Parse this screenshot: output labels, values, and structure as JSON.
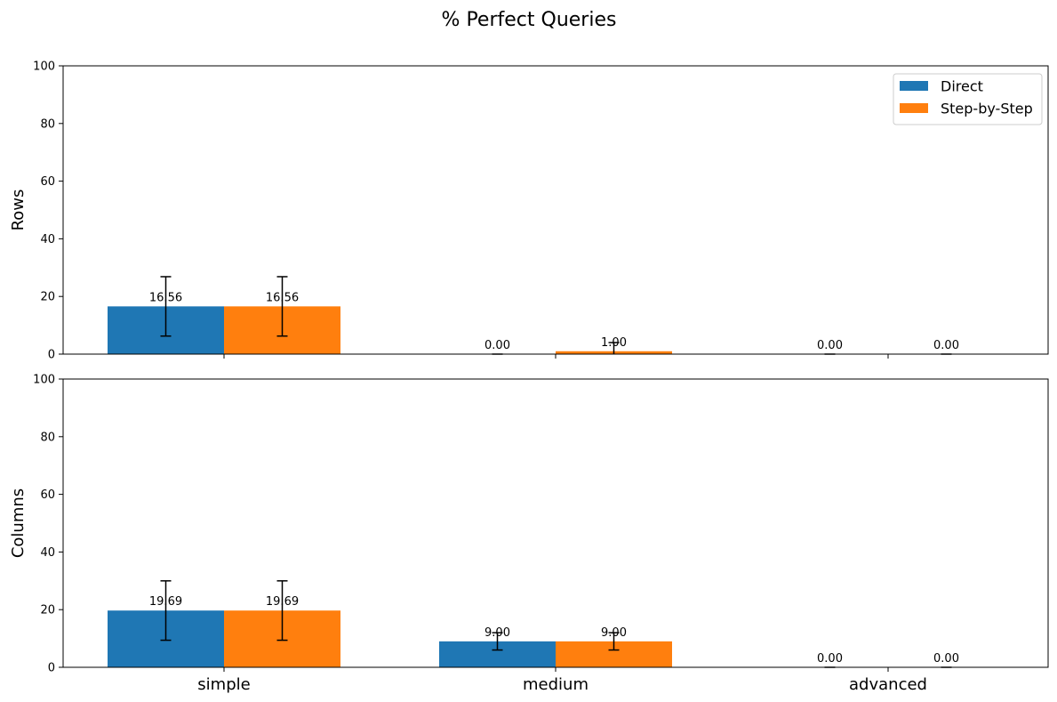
{
  "chart_data": {
    "type": "bar",
    "title": "% Perfect Queries",
    "categories": [
      "simple",
      "medium",
      "advanced"
    ],
    "ylim": [
      0,
      100
    ],
    "yticks": [
      0,
      20,
      40,
      60,
      80,
      100
    ],
    "legend": {
      "location": "top-right",
      "entries": [
        "Direct",
        "Step-by-Step"
      ]
    },
    "colors": {
      "Direct": "#1f77b4",
      "Step-by-Step": "#ff7f0e"
    },
    "panels": [
      {
        "ylabel": "Rows",
        "series": [
          {
            "name": "Direct",
            "values": [
              16.56,
              0.0,
              0.0
            ],
            "errors": [
              10.3,
              0.0,
              0.0
            ],
            "labels": [
              "16.56",
              "0.00",
              "0.00"
            ]
          },
          {
            "name": "Step-by-Step",
            "values": [
              16.56,
              1.0,
              0.0
            ],
            "errors": [
              10.3,
              3.0,
              0.0
            ],
            "labels": [
              "16.56",
              "1.00",
              "0.00"
            ]
          }
        ]
      },
      {
        "ylabel": "Columns",
        "series": [
          {
            "name": "Direct",
            "values": [
              19.69,
              9.0,
              0.0
            ],
            "errors": [
              10.3,
              3.0,
              0.0
            ],
            "labels": [
              "19.69",
              "9.00",
              "0.00"
            ]
          },
          {
            "name": "Step-by-Step",
            "values": [
              19.69,
              9.0,
              0.0
            ],
            "errors": [
              10.3,
              3.0,
              0.0
            ],
            "labels": [
              "19.69",
              "9.00",
              "0.00"
            ]
          }
        ]
      }
    ]
  }
}
